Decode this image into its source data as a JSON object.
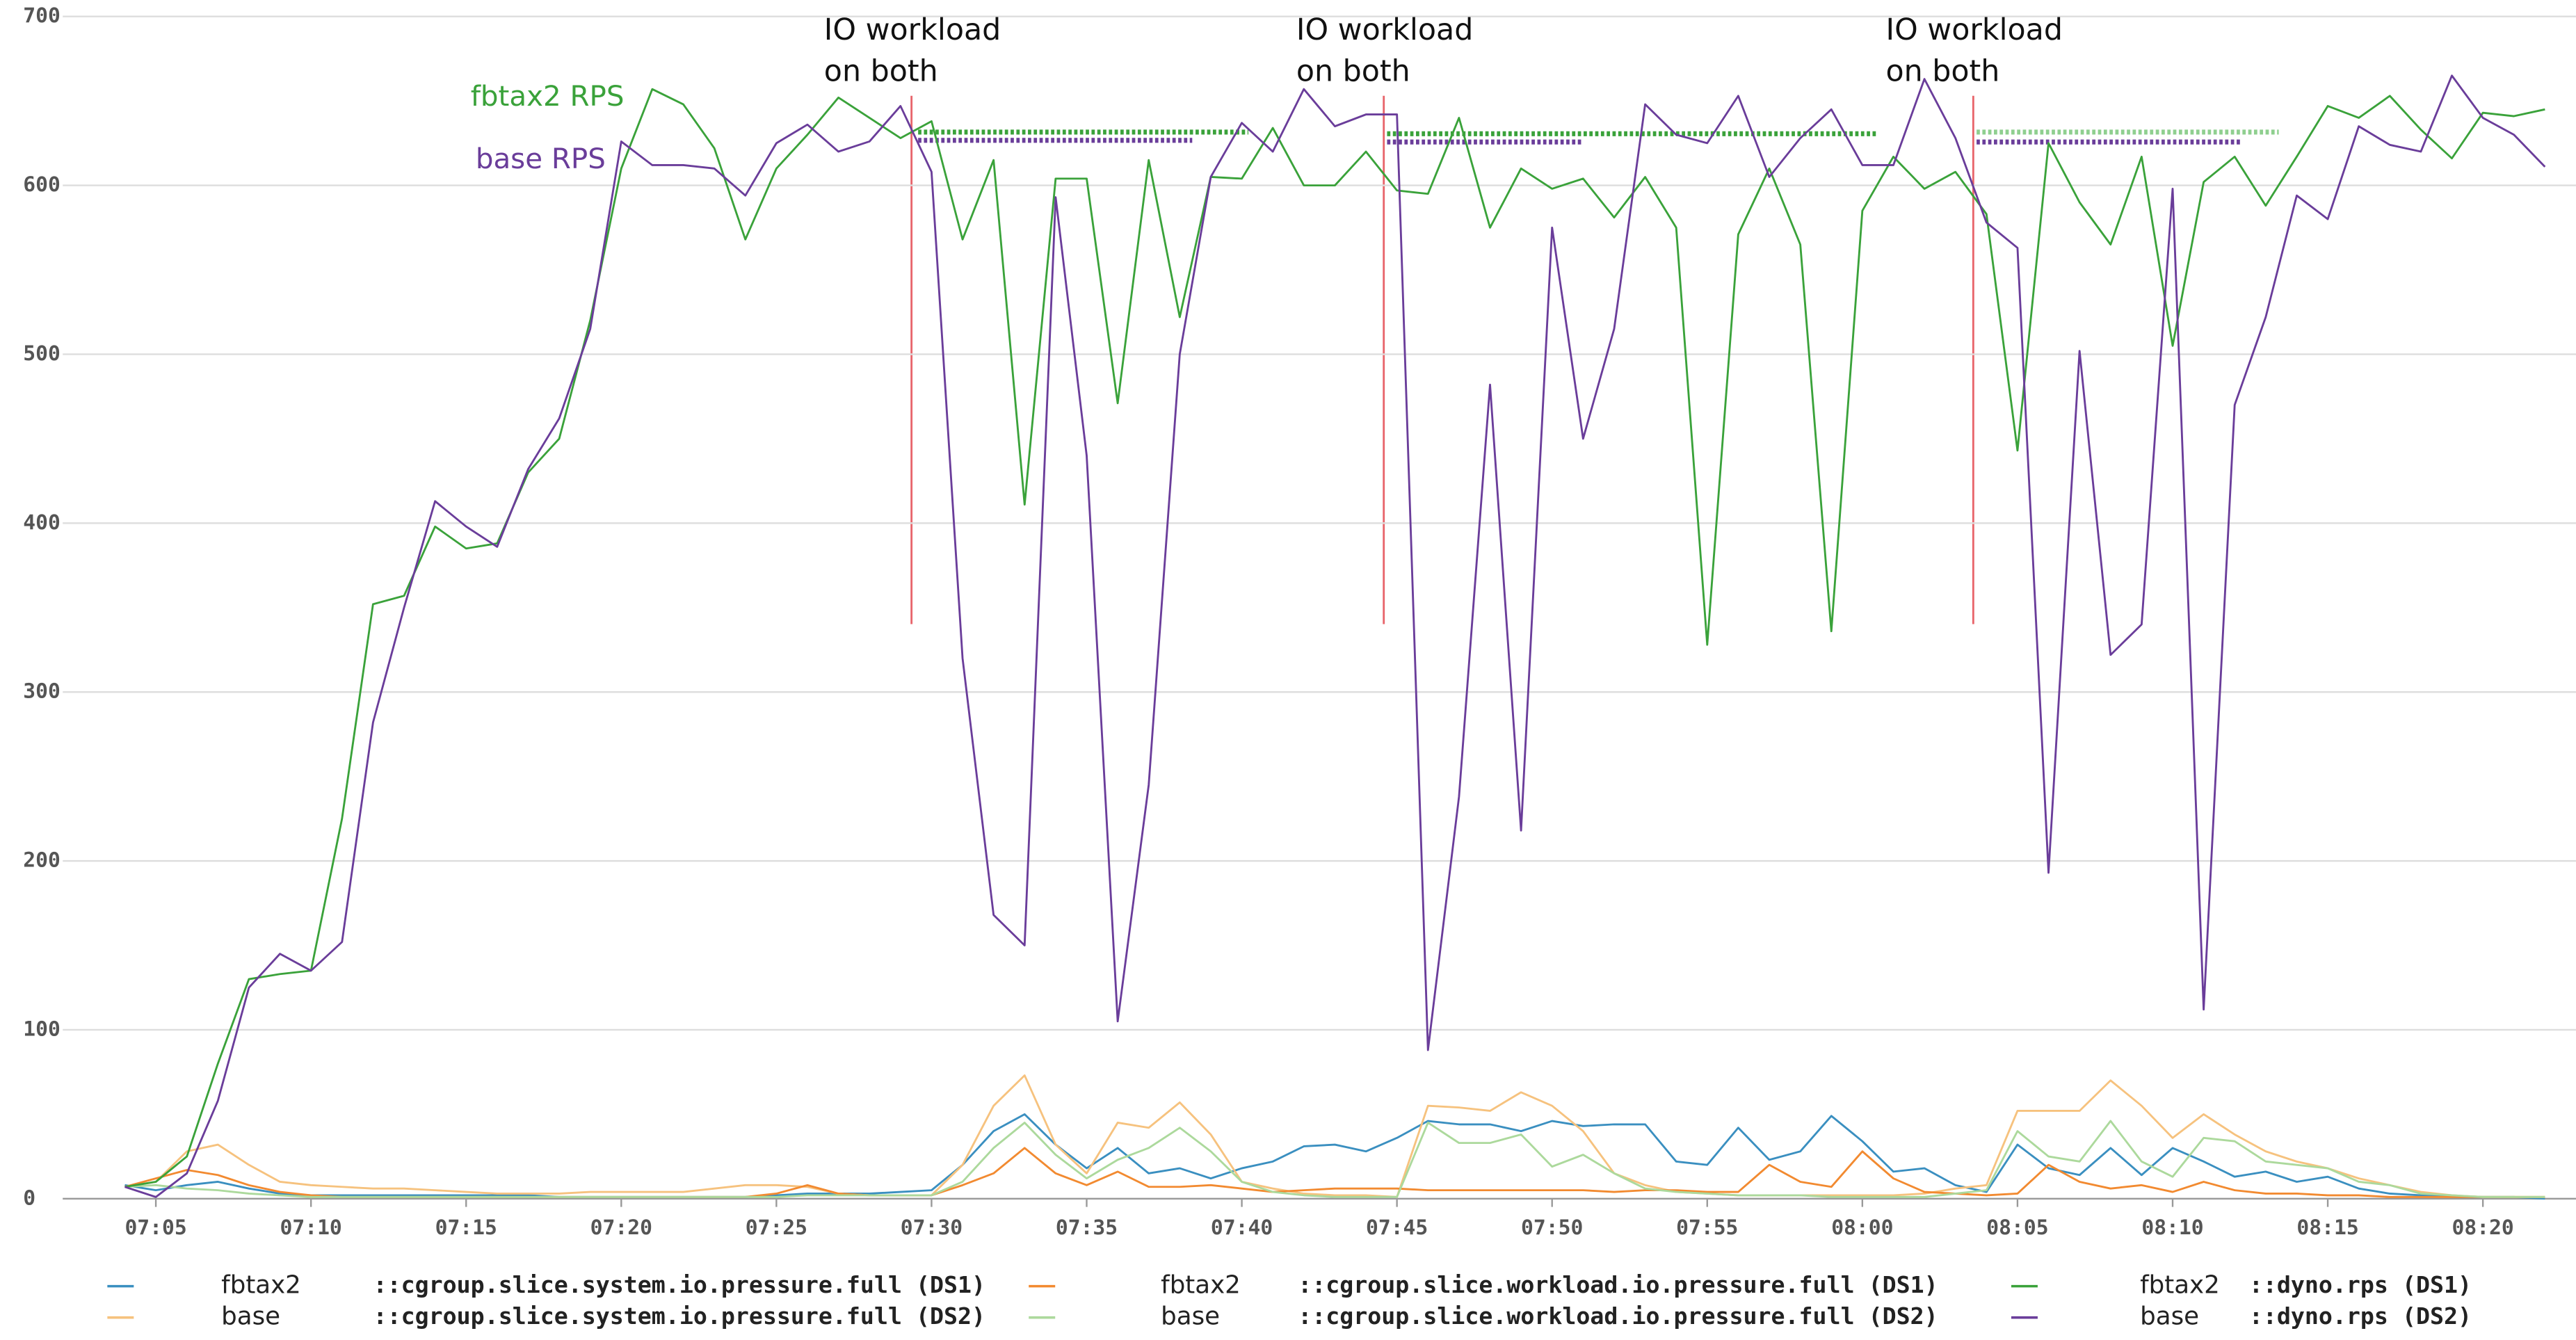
{
  "chart_data": {
    "type": "line",
    "x": [
      "07:04",
      "07:05",
      "07:06",
      "07:07",
      "07:08",
      "07:09",
      "07:10",
      "07:11",
      "07:12",
      "07:13",
      "07:14",
      "07:15",
      "07:16",
      "07:17",
      "07:18",
      "07:19",
      "07:20",
      "07:21",
      "07:22",
      "07:23",
      "07:24",
      "07:25",
      "07:26",
      "07:27",
      "07:28",
      "07:29",
      "07:30",
      "07:31",
      "07:32",
      "07:33",
      "07:34",
      "07:35",
      "07:36",
      "07:37",
      "07:38",
      "07:39",
      "07:40",
      "07:41",
      "07:42",
      "07:43",
      "07:44",
      "07:45",
      "07:46",
      "07:47",
      "07:48",
      "07:49",
      "07:50",
      "07:51",
      "07:52",
      "07:53",
      "07:54",
      "07:55",
      "07:56",
      "07:57",
      "07:58",
      "07:59",
      "08:00",
      "08:01",
      "08:02",
      "08:03",
      "08:04",
      "08:05",
      "08:06",
      "08:07",
      "08:08",
      "08:09",
      "08:10",
      "08:11",
      "08:12",
      "08:13",
      "08:14",
      "08:15",
      "08:16",
      "08:17",
      "08:18",
      "08:19",
      "08:20",
      "08:21",
      "08:22"
    ],
    "xlim": [
      "07:02",
      "08:23"
    ],
    "xticks": [
      "07:05",
      "07:10",
      "07:15",
      "07:20",
      "07:25",
      "07:30",
      "07:35",
      "07:40",
      "07:45",
      "07:50",
      "07:55",
      "08:00",
      "08:05",
      "08:10",
      "08:15",
      "08:20"
    ],
    "ylim": [
      0,
      700
    ],
    "yticks": [
      0,
      100,
      200,
      300,
      400,
      500,
      600,
      700
    ],
    "grid": true,
    "series": [
      {
        "name": "fbtax2",
        "metric": "::cgroup.slice.system.io.pressure.full (DS1)",
        "color": "#3a8fc0",
        "values": [
          8,
          5,
          8,
          10,
          6,
          3,
          2,
          2,
          2,
          2,
          2,
          2,
          2,
          2,
          1,
          1,
          1,
          1,
          1,
          1,
          1,
          2,
          3,
          3,
          3,
          4,
          5,
          20,
          40,
          50,
          32,
          18,
          30,
          15,
          18,
          12,
          18,
          22,
          31,
          32,
          28,
          36,
          46,
          44,
          44,
          40,
          46,
          43,
          44,
          44,
          22,
          20,
          42,
          23,
          28,
          49,
          34,
          16,
          18,
          8,
          4,
          32,
          18,
          14,
          30,
          14,
          30,
          22,
          13,
          16,
          10,
          13,
          6,
          3,
          2,
          1,
          1,
          1,
          0
        ]
      },
      {
        "name": "base",
        "metric": "::cgroup.slice.system.io.pressure.full (DS2)",
        "color": "#f6c27e",
        "values": [
          7,
          10,
          28,
          32,
          20,
          10,
          8,
          7,
          6,
          6,
          5,
          4,
          3,
          3,
          3,
          4,
          4,
          4,
          4,
          6,
          8,
          8,
          7,
          3,
          2,
          2,
          2,
          20,
          55,
          73,
          32,
          15,
          45,
          42,
          57,
          38,
          10,
          6,
          3,
          2,
          2,
          1,
          55,
          54,
          52,
          63,
          55,
          40,
          15,
          8,
          4,
          3,
          2,
          2,
          2,
          2,
          2,
          2,
          3,
          6,
          8,
          52,
          52,
          52,
          70,
          55,
          36,
          50,
          38,
          28,
          22,
          18,
          12,
          8,
          4,
          2,
          1,
          1,
          1
        ]
      },
      {
        "name": "fbtax2",
        "metric": "::cgroup.slice.workload.io.pressure.full (DS1)",
        "color": "#f28a30",
        "values": [
          7,
          12,
          17,
          14,
          8,
          4,
          2,
          1,
          1,
          1,
          1,
          1,
          1,
          1,
          1,
          1,
          1,
          1,
          1,
          1,
          1,
          3,
          8,
          3,
          2,
          2,
          2,
          8,
          15,
          30,
          15,
          8,
          16,
          7,
          7,
          8,
          6,
          4,
          5,
          6,
          6,
          6,
          5,
          5,
          5,
          5,
          5,
          5,
          4,
          5,
          5,
          4,
          4,
          20,
          10,
          7,
          28,
          12,
          4,
          3,
          2,
          3,
          20,
          10,
          6,
          8,
          4,
          10,
          5,
          3,
          3,
          2,
          2,
          1,
          1,
          1,
          1,
          1,
          1
        ]
      },
      {
        "name": "base",
        "metric": "::cgroup.slice.workload.io.pressure.full (DS2)",
        "color": "#acd99c",
        "values": [
          7,
          8,
          6,
          5,
          3,
          2,
          1,
          1,
          1,
          1,
          1,
          1,
          1,
          1,
          1,
          1,
          1,
          1,
          1,
          1,
          1,
          1,
          2,
          2,
          2,
          2,
          2,
          10,
          30,
          45,
          26,
          12,
          23,
          30,
          42,
          28,
          10,
          4,
          2,
          1,
          1,
          1,
          45,
          33,
          33,
          38,
          19,
          26,
          15,
          6,
          4,
          3,
          2,
          2,
          2,
          1,
          1,
          1,
          1,
          3,
          5,
          40,
          25,
          22,
          46,
          22,
          13,
          36,
          34,
          22,
          20,
          18,
          10,
          8,
          3,
          2,
          1,
          1,
          1
        ]
      },
      {
        "name": "fbtax2",
        "metric": "::dyno.rps (DS1)",
        "color": "#3aa23a",
        "values": [
          7,
          10,
          25,
          80,
          130,
          133,
          135,
          225,
          352,
          357,
          398,
          385,
          388,
          430,
          450,
          520,
          610,
          657,
          648,
          622,
          568,
          610,
          630,
          652,
          640,
          628,
          638,
          568,
          615,
          411,
          604,
          604,
          471,
          615,
          522,
          605,
          604,
          634,
          600,
          600,
          620,
          597,
          595,
          640,
          575,
          610,
          598,
          604,
          581,
          605,
          575,
          328,
          571,
          610,
          565,
          336,
          585,
          617,
          598,
          608,
          583,
          443,
          625,
          590,
          565,
          617,
          505,
          602,
          617,
          588,
          617,
          647,
          640,
          653,
          633,
          616,
          643,
          641,
          645
        ]
      },
      {
        "name": "base",
        "metric": "::dyno.rps (DS2)",
        "color": "#6a3d9a",
        "values": [
          7,
          1,
          15,
          58,
          125,
          145,
          135,
          152,
          282,
          350,
          413,
          398,
          386,
          432,
          462,
          515,
          626,
          612,
          612,
          610,
          594,
          625,
          636,
          620,
          626,
          647,
          608,
          320,
          168,
          150,
          593,
          440,
          105,
          245,
          500,
          605,
          637,
          620,
          657,
          635,
          642,
          642,
          88,
          238,
          482,
          218,
          575,
          450,
          515,
          648,
          630,
          625,
          653,
          605,
          628,
          645,
          612,
          612,
          663,
          628,
          578,
          563,
          193,
          502,
          322,
          340,
          598,
          112,
          470,
          522,
          594,
          580,
          635,
          624,
          620,
          665,
          640,
          630,
          611
        ]
      }
    ],
    "annotations": [
      {
        "lines": [
          "IO workload",
          "on both"
        ]
      },
      {
        "lines": [
          "IO workload",
          "on both"
        ]
      },
      {
        "lines": [
          "IO workload",
          "on both"
        ]
      }
    ],
    "labels": [
      {
        "text": "fbtax2 RPS",
        "color": "#3aa23a"
      },
      {
        "text": "base RPS",
        "color": "#6a3d9a"
      }
    ]
  }
}
